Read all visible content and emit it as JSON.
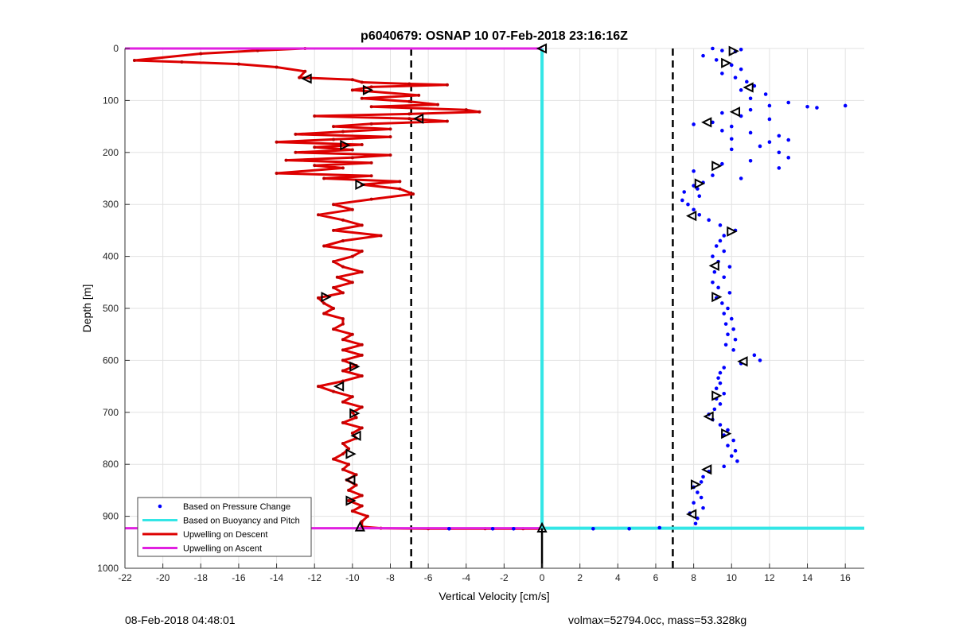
{
  "chart_data": {
    "type": "scatter",
    "title": "p6040679: OSNAP 10 07-Feb-2018 23:16:16Z",
    "xlabel": "Vertical Velocity [cm/s]",
    "ylabel": "Depth [m]",
    "xlim": [
      -22,
      17
    ],
    "ylim": [
      0,
      1000
    ],
    "y_reversed": true,
    "grid": true,
    "legend_position": "bottom-left",
    "x_ticks": [
      "-22",
      "-20",
      "-18",
      "-16",
      "-14",
      "-12",
      "-10",
      "-8",
      "-6",
      "-4",
      "-2",
      "0",
      "2",
      "4",
      "6",
      "8",
      "10",
      "12",
      "14",
      "16"
    ],
    "y_ticks": [
      "0",
      "100",
      "200",
      "300",
      "400",
      "500",
      "600",
      "700",
      "800",
      "900",
      "1000"
    ],
    "colors": {
      "pressure": "#0000ff",
      "buoyancy": "#33e6e6",
      "descent": "#dd0000",
      "ascent": "#e020e0",
      "threshold": "#000000"
    },
    "legend": [
      {
        "label": "Based on Pressure Change",
        "style": "dot",
        "color": "#0000ff"
      },
      {
        "label": "Based on Buoyancy and Pitch",
        "style": "line",
        "color": "#33e6e6"
      },
      {
        "label": "Upwelling on Descent",
        "style": "line",
        "color": "#dd0000"
      },
      {
        "label": "Upwelling on Ascent",
        "style": "line",
        "color": "#e020e0"
      }
    ],
    "thresholds": [
      -6.9,
      6.9
    ],
    "turn_depth": 923,
    "series": [
      {
        "name": "Upwelling on Descent",
        "values": [
          [
            -12.5,
            0
          ],
          [
            -15,
            4
          ],
          [
            -18,
            10
          ],
          [
            -21.5,
            23
          ],
          [
            -19,
            26
          ],
          [
            -16,
            30
          ],
          [
            -14,
            36
          ],
          [
            -12.5,
            44
          ],
          [
            -12.8,
            56
          ],
          [
            -10,
            60
          ],
          [
            -9.5,
            65
          ],
          [
            -7,
            68
          ],
          [
            -5,
            70
          ],
          [
            -9,
            74
          ],
          [
            -10,
            80
          ],
          [
            -6.5,
            90
          ],
          [
            -9.5,
            96
          ],
          [
            -7,
            102
          ],
          [
            -5.5,
            108
          ],
          [
            -9,
            112
          ],
          [
            -4,
            118
          ],
          [
            -3.3,
            122
          ],
          [
            -7,
            126
          ],
          [
            -12,
            130
          ],
          [
            -7,
            135
          ],
          [
            -5,
            140
          ],
          [
            -9,
            145
          ],
          [
            -11,
            150
          ],
          [
            -8,
            155
          ],
          [
            -10.5,
            160
          ],
          [
            -13,
            165
          ],
          [
            -8,
            170
          ],
          [
            -11,
            175
          ],
          [
            -14,
            180
          ],
          [
            -9.5,
            185
          ],
          [
            -12,
            190
          ],
          [
            -10,
            195
          ],
          [
            -13,
            200
          ],
          [
            -8,
            205
          ],
          [
            -10,
            210
          ],
          [
            -13.5,
            215
          ],
          [
            -9,
            220
          ],
          [
            -12,
            225
          ],
          [
            -10.5,
            230
          ],
          [
            -14,
            240
          ],
          [
            -9,
            245
          ],
          [
            -11.5,
            250
          ],
          [
            -7.5,
            256
          ],
          [
            -9.5,
            262
          ],
          [
            -7.5,
            270
          ],
          [
            -6.8,
            280
          ],
          [
            -9,
            290
          ],
          [
            -11,
            300
          ],
          [
            -10,
            310
          ],
          [
            -11.8,
            320
          ],
          [
            -10.5,
            330
          ],
          [
            -9.5,
            340
          ],
          [
            -11,
            350
          ],
          [
            -8.5,
            360
          ],
          [
            -10.5,
            370
          ],
          [
            -11.5,
            380
          ],
          [
            -9.5,
            390
          ],
          [
            -10,
            400
          ],
          [
            -11,
            410
          ],
          [
            -10.5,
            420
          ],
          [
            -9.5,
            430
          ],
          [
            -10.8,
            440
          ],
          [
            -10,
            450
          ],
          [
            -11,
            460
          ],
          [
            -10.5,
            470
          ],
          [
            -11.8,
            480
          ],
          [
            -11.5,
            490
          ],
          [
            -11,
            500
          ],
          [
            -11.5,
            510
          ],
          [
            -10.5,
            520
          ],
          [
            -10.5,
            530
          ],
          [
            -11,
            540
          ],
          [
            -10,
            550
          ],
          [
            -10.5,
            560
          ],
          [
            -9.5,
            570
          ],
          [
            -10.5,
            580
          ],
          [
            -9.5,
            590
          ],
          [
            -10.5,
            600
          ],
          [
            -9.8,
            610
          ],
          [
            -10.5,
            620
          ],
          [
            -9.5,
            630
          ],
          [
            -10.5,
            640
          ],
          [
            -11.8,
            650
          ],
          [
            -11,
            660
          ],
          [
            -10,
            670
          ],
          [
            -10.5,
            680
          ],
          [
            -9.5,
            690
          ],
          [
            -10,
            700
          ],
          [
            -9.8,
            710
          ],
          [
            -10.5,
            720
          ],
          [
            -9.5,
            730
          ],
          [
            -10,
            740
          ],
          [
            -9.8,
            750
          ],
          [
            -10.5,
            760
          ],
          [
            -10.2,
            770
          ],
          [
            -10.5,
            780
          ],
          [
            -11,
            790
          ],
          [
            -10.2,
            800
          ],
          [
            -10.5,
            810
          ],
          [
            -9.8,
            820
          ],
          [
            -10.3,
            830
          ],
          [
            -9.8,
            840
          ],
          [
            -10.2,
            850
          ],
          [
            -9.5,
            860
          ],
          [
            -10.2,
            870
          ],
          [
            -9.5,
            880
          ],
          [
            -10,
            890
          ],
          [
            -9.2,
            900
          ],
          [
            -9.5,
            910
          ],
          [
            -9.5,
            920
          ],
          [
            -8.5,
            923
          ],
          [
            -6,
            924
          ],
          [
            -3,
            924
          ],
          [
            -1,
            924
          ],
          [
            0,
            924
          ]
        ]
      },
      {
        "name": "Upwelling on Ascent",
        "values": [
          [
            -22,
            0
          ],
          [
            0,
            0
          ],
          [
            -22,
            923
          ],
          [
            0,
            923
          ]
        ]
      },
      {
        "name": "Based on Buoyancy and Pitch",
        "values": [
          [
            0,
            0
          ],
          [
            0,
            923
          ],
          [
            17,
            923
          ]
        ]
      },
      {
        "name": "Based on Pressure Change",
        "values": [
          [
            9,
            0
          ],
          [
            9.5,
            4
          ],
          [
            10.2,
            6
          ],
          [
            10.5,
            2
          ],
          [
            8.5,
            14
          ],
          [
            9.2,
            22
          ],
          [
            10,
            32
          ],
          [
            10.5,
            40
          ],
          [
            9.5,
            48
          ],
          [
            10.2,
            56
          ],
          [
            10.8,
            64
          ],
          [
            11.2,
            72
          ],
          [
            10.5,
            80
          ],
          [
            11.8,
            88
          ],
          [
            11,
            96
          ],
          [
            13,
            104
          ],
          [
            12,
            110
          ],
          [
            14,
            112
          ],
          [
            16,
            110
          ],
          [
            14.5,
            114
          ],
          [
            11,
            118
          ],
          [
            9.5,
            124
          ],
          [
            10.5,
            130
          ],
          [
            12,
            136
          ],
          [
            9,
            142
          ],
          [
            8,
            146
          ],
          [
            10,
            150
          ],
          [
            9.5,
            158
          ],
          [
            11,
            162
          ],
          [
            12.5,
            168
          ],
          [
            10,
            174
          ],
          [
            12,
            180
          ],
          [
            13,
            176
          ],
          [
            11.5,
            188
          ],
          [
            10,
            194
          ],
          [
            12.5,
            200
          ],
          [
            13,
            210
          ],
          [
            11,
            216
          ],
          [
            9.5,
            222
          ],
          [
            12.5,
            230
          ],
          [
            8,
            236
          ],
          [
            9,
            244
          ],
          [
            10.5,
            250
          ],
          [
            8.5,
            258
          ],
          [
            8,
            264
          ],
          [
            8.2,
            270
          ],
          [
            7.5,
            276
          ],
          [
            8.3,
            284
          ],
          [
            7.4,
            292
          ],
          [
            7.7,
            300
          ],
          [
            8,
            310
          ],
          [
            8.3,
            320
          ],
          [
            8.8,
            330
          ],
          [
            9.4,
            340
          ],
          [
            10.2,
            350
          ],
          [
            9.6,
            360
          ],
          [
            9.4,
            370
          ],
          [
            9.2,
            380
          ],
          [
            9.6,
            390
          ],
          [
            9,
            400
          ],
          [
            9.3,
            410
          ],
          [
            9.9,
            420
          ],
          [
            9.1,
            430
          ],
          [
            9.6,
            440
          ],
          [
            9,
            450
          ],
          [
            9.3,
            460
          ],
          [
            9.9,
            470
          ],
          [
            9.2,
            480
          ],
          [
            9.5,
            490
          ],
          [
            9.8,
            500
          ],
          [
            9.6,
            510
          ],
          [
            10,
            520
          ],
          [
            9.7,
            530
          ],
          [
            10.1,
            540
          ],
          [
            9.8,
            550
          ],
          [
            10.2,
            560
          ],
          [
            9.7,
            570
          ],
          [
            10.1,
            580
          ],
          [
            11.2,
            590
          ],
          [
            11.5,
            600
          ],
          [
            10.5,
            606
          ],
          [
            9.6,
            614
          ],
          [
            9.4,
            624
          ],
          [
            9.3,
            634
          ],
          [
            9.4,
            644
          ],
          [
            9.2,
            654
          ],
          [
            9.6,
            664
          ],
          [
            9.2,
            674
          ],
          [
            9.4,
            684
          ],
          [
            9.1,
            694
          ],
          [
            8.8,
            704
          ],
          [
            9.0,
            714
          ],
          [
            9.4,
            724
          ],
          [
            9.8,
            734
          ],
          [
            9.6,
            744
          ],
          [
            10.1,
            754
          ],
          [
            9.8,
            764
          ],
          [
            10.2,
            774
          ],
          [
            10,
            784
          ],
          [
            10.3,
            794
          ],
          [
            9.6,
            804
          ],
          [
            8.8,
            814
          ],
          [
            8.5,
            824
          ],
          [
            8.4,
            834
          ],
          [
            8,
            844
          ],
          [
            8.2,
            854
          ],
          [
            8.4,
            864
          ],
          [
            8.0,
            874
          ],
          [
            8.5,
            884
          ],
          [
            7.8,
            894
          ],
          [
            8.2,
            904
          ],
          [
            8.1,
            914
          ],
          [
            6.2,
            922
          ],
          [
            4.6,
            924
          ],
          [
            2.7,
            924
          ],
          [
            -1.5,
            924
          ],
          [
            -2.6,
            924
          ],
          [
            -4.9,
            924
          ]
        ]
      }
    ],
    "markers": [
      {
        "x": 0,
        "y": 0,
        "dir": "left"
      },
      {
        "x": -12.4,
        "y": 58,
        "dir": "left"
      },
      {
        "x": -9.2,
        "y": 80,
        "dir": "right"
      },
      {
        "x": -6.5,
        "y": 135,
        "dir": "left"
      },
      {
        "x": -10.4,
        "y": 186,
        "dir": "right"
      },
      {
        "x": -9.6,
        "y": 262,
        "dir": "right"
      },
      {
        "x": -11.4,
        "y": 478,
        "dir": "right"
      },
      {
        "x": -9.9,
        "y": 612,
        "dir": "right"
      },
      {
        "x": -10.7,
        "y": 650,
        "dir": "left"
      },
      {
        "x": -9.9,
        "y": 702,
        "dir": "right"
      },
      {
        "x": -9.8,
        "y": 745,
        "dir": "left"
      },
      {
        "x": -10.1,
        "y": 780,
        "dir": "right"
      },
      {
        "x": -10.1,
        "y": 830,
        "dir": "left"
      },
      {
        "x": -10.1,
        "y": 870,
        "dir": "right"
      },
      {
        "x": -9.6,
        "y": 920,
        "dir": "up"
      },
      {
        "x": 0,
        "y": 922,
        "dir": "up"
      },
      {
        "x": 10.1,
        "y": 5,
        "dir": "right"
      },
      {
        "x": 9.7,
        "y": 28,
        "dir": "right"
      },
      {
        "x": 10.9,
        "y": 75,
        "dir": "left"
      },
      {
        "x": 10.2,
        "y": 122,
        "dir": "left"
      },
      {
        "x": 8.7,
        "y": 142,
        "dir": "left"
      },
      {
        "x": 9.2,
        "y": 226,
        "dir": "right"
      },
      {
        "x": 8.3,
        "y": 260,
        "dir": "right"
      },
      {
        "x": 7.9,
        "y": 322,
        "dir": "left"
      },
      {
        "x": 10.0,
        "y": 352,
        "dir": "right"
      },
      {
        "x": 9.1,
        "y": 418,
        "dir": "left"
      },
      {
        "x": 9.2,
        "y": 478,
        "dir": "right"
      },
      {
        "x": 10.6,
        "y": 602,
        "dir": "left"
      },
      {
        "x": 9.2,
        "y": 668,
        "dir": "right"
      },
      {
        "x": 8.8,
        "y": 708,
        "dir": "left"
      },
      {
        "x": 9.7,
        "y": 741,
        "dir": "right"
      },
      {
        "x": 8.7,
        "y": 810,
        "dir": "left"
      },
      {
        "x": 8.1,
        "y": 839,
        "dir": "right"
      },
      {
        "x": 7.9,
        "y": 896,
        "dir": "left"
      }
    ]
  },
  "footer": {
    "left": "08-Feb-2018 04:48:01",
    "right": "volmax=52794.0cc, mass=53.328kg"
  }
}
